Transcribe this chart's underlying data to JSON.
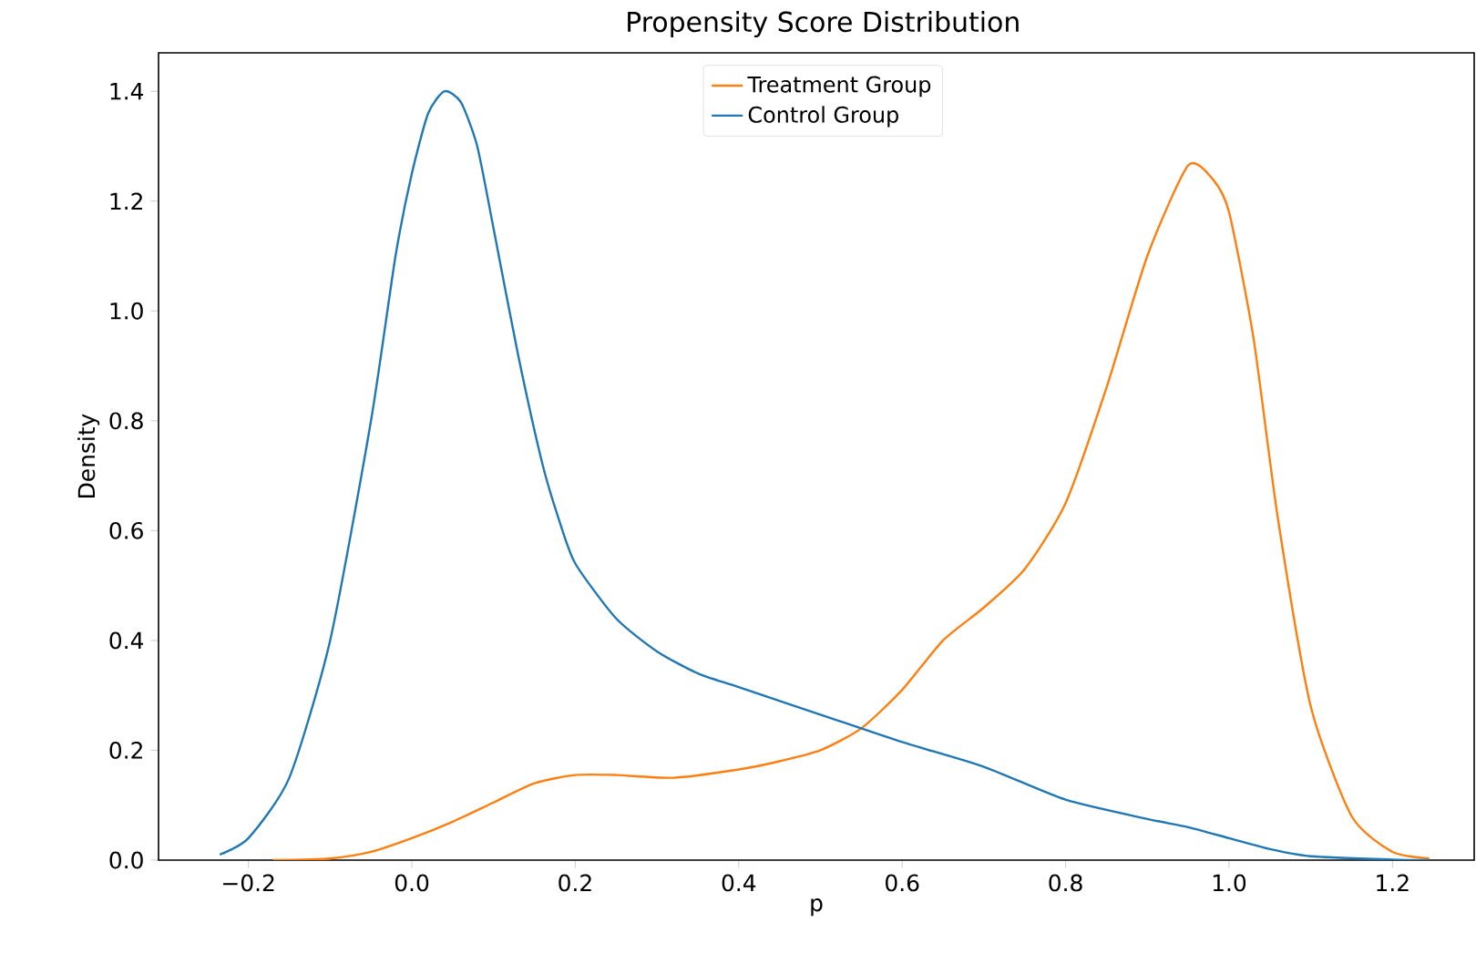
{
  "chart_data": {
    "type": "line",
    "title": "Propensity Score Distribution",
    "xlabel": "p",
    "ylabel": "Density",
    "xlim": [
      -0.31,
      1.3
    ],
    "ylim": [
      0,
      1.47
    ],
    "xticks": [
      {
        "value": -0.2,
        "label": "−0.2"
      },
      {
        "value": 0,
        "label": "0.0"
      },
      0.2,
      0.4,
      0.6,
      0.8,
      {
        "value": 1,
        "label": "1.0"
      },
      1.2
    ],
    "yticks": [
      {
        "value": 0,
        "label": "0.0"
      },
      0.2,
      0.4,
      0.6,
      0.8,
      {
        "value": 1,
        "label": "1.0"
      },
      1.2,
      1.4
    ],
    "grid": false,
    "legend": "top",
    "marker": "none",
    "line_style": "solid",
    "series": [
      {
        "name": "Treatment Group",
        "color": "#ff7f0e",
        "x": [
          -0.17,
          -0.1,
          -0.05,
          0.0,
          0.05,
          0.1,
          0.15,
          0.2,
          0.25,
          0.32,
          0.4,
          0.45,
          0.5,
          0.55,
          0.6,
          0.65,
          0.7,
          0.75,
          0.8,
          0.85,
          0.9,
          0.95,
          0.98,
          1.0,
          1.03,
          1.06,
          1.1,
          1.15,
          1.2,
          1.245
        ],
        "values": [
          0.0,
          0.003,
          0.015,
          0.04,
          0.07,
          0.105,
          0.14,
          0.155,
          0.155,
          0.15,
          0.165,
          0.18,
          0.2,
          0.24,
          0.31,
          0.4,
          0.46,
          0.53,
          0.65,
          0.86,
          1.1,
          1.265,
          1.24,
          1.18,
          0.95,
          0.62,
          0.28,
          0.08,
          0.015,
          0.003
        ]
      },
      {
        "name": "Control Group",
        "color": "#1f77b4",
        "x": [
          -0.235,
          -0.2,
          -0.15,
          -0.1,
          -0.05,
          -0.02,
          0.0,
          0.02,
          0.04,
          0.06,
          0.08,
          0.1,
          0.13,
          0.16,
          0.18,
          0.2,
          0.25,
          0.3,
          0.35,
          0.4,
          0.5,
          0.6,
          0.7,
          0.8,
          0.9,
          0.95,
          1.0,
          1.05,
          1.1,
          1.2,
          1.245
        ],
        "values": [
          0.01,
          0.04,
          0.15,
          0.4,
          0.8,
          1.1,
          1.25,
          1.36,
          1.4,
          1.38,
          1.3,
          1.15,
          0.92,
          0.72,
          0.62,
          0.54,
          0.44,
          0.38,
          0.34,
          0.315,
          0.265,
          0.215,
          0.17,
          0.11,
          0.075,
          0.06,
          0.04,
          0.02,
          0.007,
          0.001,
          0.0
        ]
      }
    ]
  }
}
